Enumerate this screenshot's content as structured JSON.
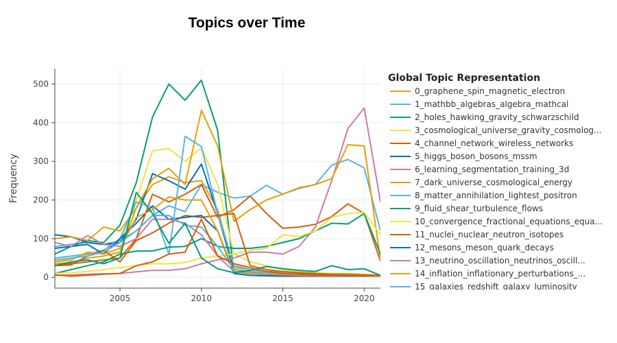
{
  "chart_data": {
    "type": "line",
    "title": "Topics over Time",
    "xlabel": "",
    "ylabel": "Frequency",
    "xlim": [
      2001,
      2021
    ],
    "ylim": [
      -28,
      540
    ],
    "xticks": [
      2005,
      2010,
      2015,
      2020
    ],
    "yticks": [
      0,
      100,
      200,
      300,
      400,
      500
    ],
    "grid": true,
    "legend": {
      "title": "Global Topic Representation",
      "placement": "right"
    },
    "series": [
      {
        "name": "0_graphene_spin_magnetic_electron",
        "color": "#E69F00",
        "x": [
          2001,
          2002,
          2003,
          2004,
          2005,
          2006,
          2007,
          2008,
          2009,
          2010,
          2011,
          2012,
          2013,
          2014,
          2015,
          2016,
          2017,
          2018,
          2019,
          2020,
          2021
        ],
        "y": [
          35,
          38,
          50,
          55,
          65,
          180,
          240,
          260,
          245,
          250,
          175,
          25,
          20,
          15,
          14,
          12,
          10,
          8,
          8,
          6,
          5
        ]
      },
      {
        "name": "1_mathbb_algebras_algebra_mathcal",
        "color": "#56B4E9",
        "x": [
          2001,
          2002,
          2003,
          2004,
          2005,
          2006,
          2007,
          2008,
          2009,
          2010,
          2011,
          2012,
          2013,
          2014,
          2015,
          2016,
          2017,
          2018,
          2019,
          2020,
          2021
        ],
        "y": [
          80,
          85,
          90,
          85,
          95,
          120,
          160,
          185,
          170,
          240,
          220,
          205,
          210,
          238,
          215,
          230,
          240,
          290,
          305,
          283,
          120
        ]
      },
      {
        "name": "2_holes_hawking_gravity_schwarzschild",
        "color": "#009E73",
        "x": [
          2001,
          2002,
          2003,
          2004,
          2005,
          2006,
          2007,
          2008,
          2009,
          2010,
          2011,
          2012,
          2013,
          2014,
          2015,
          2016,
          2017,
          2018,
          2019,
          2020,
          2021
        ],
        "y": [
          60,
          80,
          95,
          90,
          135,
          245,
          415,
          500,
          458,
          510,
          380,
          10,
          5,
          4,
          3,
          3,
          3,
          3,
          3,
          3,
          3
        ]
      },
      {
        "name": "3_cosmological_universe_gravity_cosmolog...",
        "color": "#F0E442",
        "x": [
          2001,
          2002,
          2003,
          2004,
          2005,
          2006,
          2007,
          2008,
          2009,
          2010,
          2011,
          2012,
          2013,
          2014,
          2015,
          2016,
          2017,
          2018,
          2019,
          2020,
          2021
        ],
        "y": [
          40,
          50,
          60,
          70,
          90,
          200,
          327,
          333,
          300,
          335,
          240,
          60,
          40,
          30,
          20,
          15,
          12,
          10,
          10,
          8,
          6
        ]
      },
      {
        "name": "4_channel_network_wireless_networks",
        "color": "#D55E00",
        "x": [
          2001,
          2002,
          2003,
          2004,
          2005,
          2006,
          2007,
          2008,
          2009,
          2010,
          2011,
          2012,
          2013,
          2014,
          2015,
          2016,
          2017,
          2018,
          2019,
          2020,
          2021
        ],
        "y": [
          30,
          35,
          40,
          45,
          50,
          100,
          215,
          195,
          215,
          240,
          155,
          175,
          210,
          165,
          127,
          130,
          137,
          157,
          190,
          165,
          42
        ]
      },
      {
        "name": "5_higgs_boson_bosons_mssm",
        "color": "#0072B2",
        "x": [
          2001,
          2002,
          2003,
          2004,
          2005,
          2006,
          2007,
          2008,
          2009,
          2010,
          2011,
          2012,
          2013,
          2014,
          2015,
          2016,
          2017,
          2018,
          2019,
          2020,
          2021
        ],
        "y": [
          110,
          105,
          90,
          85,
          90,
          150,
          268,
          250,
          228,
          293,
          165,
          15,
          10,
          8,
          6,
          5,
          5,
          4,
          4,
          4,
          3
        ]
      },
      {
        "name": "6_learning_segmentation_training_3d",
        "color": "#CC79A7",
        "x": [
          2001,
          2002,
          2003,
          2004,
          2005,
          2006,
          2007,
          2008,
          2009,
          2010,
          2011,
          2012,
          2013,
          2014,
          2015,
          2016,
          2017,
          2018,
          2019,
          2020,
          2021
        ],
        "y": [
          5,
          6,
          8,
          9,
          10,
          14,
          18,
          18,
          22,
          35,
          45,
          50,
          65,
          65,
          60,
          80,
          130,
          250,
          385,
          438,
          195
        ]
      },
      {
        "name": "7_dark_universe_cosmological_energy",
        "color": "#E69F00",
        "x": [
          2001,
          2002,
          2003,
          2004,
          2005,
          2006,
          2007,
          2008,
          2009,
          2010,
          2011,
          2012,
          2013,
          2014,
          2015,
          2016,
          2017,
          2018,
          2019,
          2020,
          2021
        ],
        "y": [
          100,
          105,
          95,
          130,
          120,
          180,
          255,
          282,
          240,
          432,
          340,
          145,
          175,
          200,
          215,
          232,
          240,
          255,
          343,
          340,
          45
        ]
      },
      {
        "name": "8_matter_annihilation_lightest_positron",
        "color": "#56B4E9",
        "x": [
          2001,
          2002,
          2003,
          2004,
          2005,
          2006,
          2007,
          2008,
          2009,
          2010,
          2011,
          2012,
          2013,
          2014,
          2015,
          2016,
          2017,
          2018,
          2019,
          2020,
          2021
        ],
        "y": [
          50,
          55,
          60,
          70,
          100,
          195,
          180,
          60,
          365,
          338,
          165,
          30,
          20,
          15,
          12,
          10,
          8,
          7,
          6,
          5,
          4
        ]
      },
      {
        "name": "9_fluid_shear_turbulence_flows",
        "color": "#009E73",
        "x": [
          2001,
          2002,
          2003,
          2004,
          2005,
          2006,
          2007,
          2008,
          2009,
          2010,
          2011,
          2012,
          2013,
          2014,
          2015,
          2016,
          2017,
          2018,
          2019,
          2020,
          2021
        ],
        "y": [
          10,
          20,
          30,
          40,
          60,
          68,
          68,
          78,
          80,
          100,
          80,
          75,
          75,
          80,
          90,
          100,
          120,
          140,
          138,
          165,
          60
        ]
      },
      {
        "name": "10_convergence_fractional_equations_equa...",
        "color": "#F0E442",
        "x": [
          2001,
          2002,
          2003,
          2004,
          2005,
          2006,
          2007,
          2008,
          2009,
          2010,
          2011,
          2012,
          2013,
          2014,
          2015,
          2016,
          2017,
          2018,
          2019,
          2020,
          2021
        ],
        "y": [
          10,
          12,
          15,
          20,
          25,
          30,
          35,
          35,
          38,
          50,
          55,
          60,
          70,
          75,
          110,
          105,
          120,
          155,
          165,
          168,
          110
        ]
      },
      {
        "name": "11_nuclei_nuclear_neutron_isotopes",
        "color": "#D55E00",
        "x": [
          2001,
          2002,
          2003,
          2004,
          2005,
          2006,
          2007,
          2008,
          2009,
          2010,
          2011,
          2012,
          2013,
          2014,
          2015,
          2016,
          2017,
          2018,
          2019,
          2020,
          2021
        ],
        "y": [
          30,
          32,
          55,
          70,
          40,
          95,
          115,
          140,
          160,
          155,
          160,
          165,
          30,
          20,
          15,
          12,
          10,
          8,
          8,
          6,
          5
        ]
      },
      {
        "name": "12_mesons_meson_quark_decays",
        "color": "#0072B2",
        "x": [
          2001,
          2002,
          2003,
          2004,
          2005,
          2006,
          2007,
          2008,
          2009,
          2010,
          2011,
          2012,
          2013,
          2014,
          2015,
          2016,
          2017,
          2018,
          2019,
          2020,
          2021
        ],
        "y": [
          75,
          80,
          85,
          60,
          100,
          140,
          185,
          150,
          155,
          160,
          120,
          10,
          5,
          4,
          3,
          3,
          3,
          3,
          3,
          3,
          3
        ]
      },
      {
        "name": "13_neutrino_oscillation_neutrinos_oscill...",
        "color": "#CC79A7",
        "x": [
          2001,
          2002,
          2003,
          2004,
          2005,
          2006,
          2007,
          2008,
          2009,
          2010,
          2011,
          2012,
          2013,
          2014,
          2015,
          2016,
          2017,
          2018,
          2019,
          2020,
          2021
        ],
        "y": [
          90,
          80,
          108,
          85,
          80,
          100,
          150,
          150,
          140,
          110,
          55,
          15,
          10,
          8,
          6,
          5,
          5,
          4,
          4,
          4,
          3
        ]
      },
      {
        "name": "14_inflation_inflationary_perturbations_...",
        "color": "#E69F00",
        "x": [
          2001,
          2002,
          2003,
          2004,
          2005,
          2006,
          2007,
          2008,
          2009,
          2010,
          2011,
          2012,
          2013,
          2014,
          2015,
          2016,
          2017,
          2018,
          2019,
          2020,
          2021
        ],
        "y": [
          40,
          45,
          65,
          60,
          75,
          155,
          175,
          208,
          200,
          200,
          120,
          15,
          12,
          10,
          8,
          6,
          5,
          5,
          4,
          4,
          3
        ]
      },
      {
        "name": "15_galaxies_redshift_galaxy_luminosity",
        "color": "#56B4E9",
        "x": [
          2001,
          2002,
          2003,
          2004,
          2005,
          2006,
          2007,
          2008,
          2009,
          2010,
          2011,
          2012,
          2013,
          2014,
          2015,
          2016,
          2017,
          2018,
          2019,
          2020,
          2021
        ],
        "y": [
          45,
          50,
          55,
          65,
          90,
          120,
          160,
          160,
          135,
          130,
          80,
          20,
          15,
          12,
          10,
          8,
          6,
          5,
          5,
          4,
          4
        ]
      },
      {
        "name": "",
        "color": "#009E73",
        "x": [
          2001,
          2002,
          2003,
          2004,
          2005,
          2006,
          2007,
          2008,
          2009,
          2010,
          2011,
          2012,
          2013,
          2014,
          2015,
          2016,
          2017,
          2018,
          2019,
          2020,
          2021
        ],
        "y": [
          30,
          40,
          45,
          35,
          50,
          220,
          165,
          88,
          140,
          50,
          22,
          12,
          18,
          28,
          22,
          18,
          15,
          30,
          20,
          22,
          5
        ]
      },
      {
        "name": "",
        "color": "#D55E00",
        "x": [
          2001,
          2002,
          2003,
          2004,
          2005,
          2006,
          2007,
          2008,
          2009,
          2010,
          2011,
          2012,
          2013,
          2014,
          2015,
          2016,
          2017,
          2018,
          2019,
          2020,
          2021
        ],
        "y": [
          6,
          3,
          5,
          8,
          10,
          30,
          40,
          60,
          65,
          150,
          55,
          35,
          25,
          15,
          10,
          8,
          6,
          5,
          4,
          4,
          3
        ]
      }
    ]
  }
}
